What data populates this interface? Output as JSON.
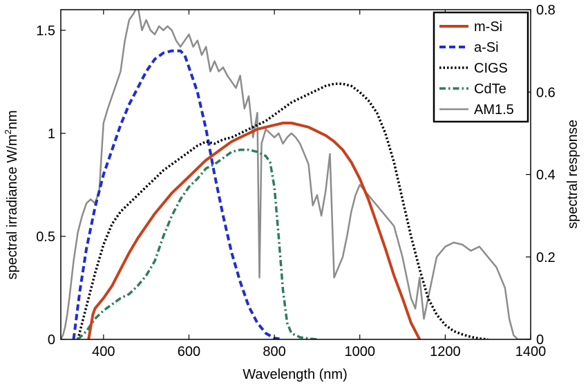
{
  "chart_data": {
    "type": "line",
    "xlabel": "Wavelength (nm)",
    "ylabel_left": "spectral irradiance W/m",
    "ylabel_left_sup": "2",
    "ylabel_left_suffix": "nm",
    "ylabel_right": "spectral response",
    "xlim": [
      300,
      1400
    ],
    "ylim_left": [
      0,
      1.6
    ],
    "ylim_right": [
      0,
      0.8
    ],
    "x_ticks": [
      {
        "value": 400,
        "label": "400"
      },
      {
        "value": 600,
        "label": "600"
      },
      {
        "value": 800,
        "label": "800"
      },
      {
        "value": 1000,
        "label": "1000"
      },
      {
        "value": 1200,
        "label": "1200"
      },
      {
        "value": 1400,
        "label": "1400"
      }
    ],
    "y_left_ticks": [
      {
        "value": 0,
        "label": "0"
      },
      {
        "value": 0.5,
        "label": "0.5"
      },
      {
        "value": 1,
        "label": "1"
      },
      {
        "value": 1.5,
        "label": "1.5"
      }
    ],
    "y_right_ticks": [
      {
        "value": 0,
        "label": "0"
      },
      {
        "value": 0.2,
        "label": "0.2"
      },
      {
        "value": 0.4,
        "label": "0.4"
      },
      {
        "value": 0.6,
        "label": "0.6"
      },
      {
        "value": 0.8,
        "label": "0.8"
      }
    ],
    "grid": false,
    "legend_position": "top-right",
    "series": [
      {
        "name": "m-Si",
        "axis": "right",
        "color": "#c8411b",
        "dash": "solid",
        "width": 4,
        "x": [
          365,
          370,
          375,
          380,
          400,
          420,
          440,
          460,
          480,
          500,
          520,
          540,
          560,
          580,
          600,
          620,
          640,
          660,
          680,
          700,
          720,
          740,
          760,
          780,
          800,
          820,
          840,
          860,
          880,
          900,
          920,
          940,
          960,
          980,
          1000,
          1020,
          1040,
          1060,
          1080,
          1100,
          1120,
          1140
        ],
        "y": [
          0,
          0.03,
          0.06,
          0.075,
          0.1,
          0.13,
          0.17,
          0.21,
          0.245,
          0.275,
          0.305,
          0.33,
          0.355,
          0.375,
          0.395,
          0.415,
          0.435,
          0.45,
          0.465,
          0.48,
          0.49,
          0.5,
          0.51,
          0.515,
          0.52,
          0.525,
          0.525,
          0.52,
          0.515,
          0.505,
          0.495,
          0.48,
          0.46,
          0.43,
          0.39,
          0.34,
          0.28,
          0.22,
          0.155,
          0.1,
          0.04,
          0
        ]
      },
      {
        "name": "a-Si",
        "axis": "right",
        "color": "#1f2ecf",
        "dash": "dashed",
        "width": 4,
        "x": [
          330,
          345,
          360,
          380,
          400,
          420,
          440,
          460,
          480,
          500,
          520,
          540,
          560,
          580,
          590,
          600,
          620,
          640,
          660,
          680,
          700,
          720,
          740,
          760,
          780,
          800,
          820
        ],
        "y": [
          0,
          0.12,
          0.22,
          0.32,
          0.4,
          0.46,
          0.52,
          0.57,
          0.61,
          0.65,
          0.68,
          0.695,
          0.7,
          0.7,
          0.69,
          0.66,
          0.6,
          0.51,
          0.4,
          0.3,
          0.21,
          0.14,
          0.08,
          0.04,
          0.015,
          0.003,
          0
        ]
      },
      {
        "name": "CIGS",
        "axis": "right",
        "color": "#000000",
        "dash": "dotted",
        "width": 3.5,
        "x": [
          340,
          360,
          380,
          400,
          420,
          440,
          460,
          480,
          500,
          520,
          540,
          560,
          580,
          600,
          620,
          640,
          660,
          680,
          700,
          720,
          740,
          760,
          780,
          800,
          820,
          840,
          860,
          880,
          900,
          920,
          940,
          960,
          980,
          1000,
          1020,
          1040,
          1060,
          1080,
          1100,
          1120,
          1140,
          1160,
          1180,
          1200,
          1220,
          1240,
          1260,
          1280,
          1300
        ],
        "y": [
          0,
          0.08,
          0.16,
          0.23,
          0.28,
          0.31,
          0.33,
          0.35,
          0.37,
          0.39,
          0.41,
          0.425,
          0.44,
          0.455,
          0.47,
          0.48,
          0.475,
          0.485,
          0.49,
          0.5,
          0.51,
          0.52,
          0.53,
          0.545,
          0.56,
          0.575,
          0.585,
          0.595,
          0.605,
          0.615,
          0.62,
          0.62,
          0.615,
          0.6,
          0.58,
          0.55,
          0.5,
          0.43,
          0.34,
          0.25,
          0.17,
          0.1,
          0.06,
          0.035,
          0.02,
          0.012,
          0.006,
          0.002,
          0
        ]
      },
      {
        "name": "CdTe",
        "axis": "right",
        "color": "#2e7d5a",
        "dash": "dashdot",
        "width": 3.5,
        "x": [
          340,
          360,
          380,
          400,
          420,
          440,
          460,
          480,
          500,
          520,
          540,
          560,
          580,
          600,
          620,
          640,
          660,
          680,
          700,
          720,
          740,
          760,
          780,
          790,
          800,
          810,
          820,
          830,
          840,
          860,
          880,
          900
        ],
        "y": [
          0,
          0.02,
          0.05,
          0.07,
          0.085,
          0.1,
          0.11,
          0.13,
          0.155,
          0.19,
          0.25,
          0.3,
          0.34,
          0.37,
          0.39,
          0.415,
          0.425,
          0.44,
          0.455,
          0.46,
          0.46,
          0.455,
          0.445,
          0.43,
          0.37,
          0.25,
          0.12,
          0.04,
          0.015,
          0.005,
          0.002,
          0
        ]
      },
      {
        "name": "AM1.5",
        "axis": "left",
        "color": "#8c8c8c",
        "dash": "solid",
        "width": 2.5,
        "x": [
          300,
          305,
          310,
          315,
          320,
          330,
          340,
          350,
          360,
          370,
          380,
          390,
          400,
          410,
          420,
          430,
          440,
          450,
          460,
          470,
          480,
          490,
          500,
          510,
          520,
          530,
          540,
          550,
          560,
          570,
          580,
          590,
          600,
          610,
          620,
          630,
          640,
          650,
          660,
          670,
          680,
          690,
          700,
          710,
          720,
          730,
          740,
          750,
          760,
          765,
          770,
          780,
          790,
          800,
          810,
          820,
          830,
          840,
          850,
          860,
          870,
          880,
          890,
          900,
          910,
          920,
          930,
          940,
          950,
          960,
          970,
          980,
          990,
          1000,
          1020,
          1040,
          1060,
          1080,
          1100,
          1110,
          1120,
          1130,
          1140,
          1150,
          1160,
          1170,
          1180,
          1200,
          1220,
          1240,
          1260,
          1280,
          1300,
          1320,
          1340,
          1350,
          1360,
          1370,
          1400
        ],
        "y": [
          0,
          0.02,
          0.06,
          0.12,
          0.2,
          0.38,
          0.52,
          0.6,
          0.66,
          0.68,
          0.66,
          0.72,
          1.05,
          1.12,
          1.18,
          1.24,
          1.3,
          1.45,
          1.55,
          1.58,
          1.62,
          1.5,
          1.55,
          1.5,
          1.48,
          1.52,
          1.5,
          1.52,
          1.5,
          1.45,
          1.42,
          1.45,
          1.48,
          1.42,
          1.45,
          1.38,
          1.42,
          1.3,
          1.35,
          1.3,
          1.32,
          1.28,
          1.25,
          1.22,
          1.28,
          1.12,
          1.18,
          0.98,
          1.1,
          0.3,
          0.95,
          1.02,
          1.0,
          0.98,
          1.0,
          0.95,
          0.98,
          1.0,
          0.98,
          0.95,
          0.9,
          0.85,
          0.65,
          0.7,
          0.6,
          0.72,
          0.9,
          0.3,
          0.35,
          0.4,
          0.5,
          0.62,
          0.7,
          0.75,
          0.7,
          0.65,
          0.6,
          0.55,
          0.4,
          0.3,
          0.2,
          0.15,
          0.3,
          0.1,
          0.2,
          0.3,
          0.4,
          0.45,
          0.47,
          0.46,
          0.43,
          0.45,
          0.4,
          0.35,
          0.25,
          0.1,
          0.02,
          0,
          0
        ]
      }
    ]
  }
}
